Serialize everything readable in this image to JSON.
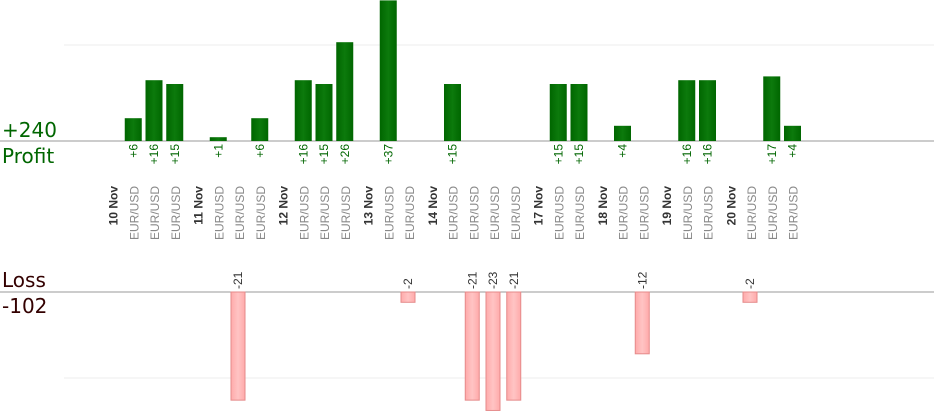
{
  "summary": {
    "profit_total": "+240",
    "profit_label": "Profit",
    "loss_label": "Loss",
    "loss_total": "-102"
  },
  "colors": {
    "profit_bar": "#006600",
    "profit_bar_light": "#0c7a0c",
    "loss_bar": "#ffaaaa",
    "loss_bar_border": "#e58a8a",
    "profit_label": "#006600",
    "loss_label": "#333333",
    "date_label": "#333333",
    "pair_label": "#888888",
    "baseline": "#999999",
    "grid": "#eeeeee"
  },
  "chart_data": {
    "type": "bar",
    "days": [
      {
        "date": "10 Nov",
        "trades": [
          6,
          16,
          15
        ]
      },
      {
        "date": "11 Nov",
        "trades": [
          1,
          -21,
          6
        ]
      },
      {
        "date": "12 Nov",
        "trades": [
          16,
          15,
          26
        ]
      },
      {
        "date": "13 Nov",
        "trades": [
          37,
          -2
        ]
      },
      {
        "date": "14 Nov",
        "trades": [
          15,
          -21,
          -23,
          -21
        ]
      },
      {
        "date": "17 Nov",
        "trades": [
          15,
          15
        ]
      },
      {
        "date": "18 Nov",
        "trades": [
          4,
          -12
        ]
      },
      {
        "date": "19 Nov",
        "trades": [
          16,
          16
        ]
      },
      {
        "date": "20 Nov",
        "trades": [
          -2,
          17,
          4
        ]
      }
    ],
    "pair": "EUR/USD",
    "profit_value_labels": [
      "+6",
      "+16",
      "+15",
      "+1",
      "+6",
      "+16",
      "+15",
      "+26",
      "+37",
      "+15",
      "+15",
      "+15",
      "+4",
      "+16",
      "+16",
      "+17",
      "+4"
    ],
    "loss_value_labels": [
      "-21",
      "-2",
      "-21",
      "-23",
      "-21",
      "-12",
      "-2"
    ]
  }
}
